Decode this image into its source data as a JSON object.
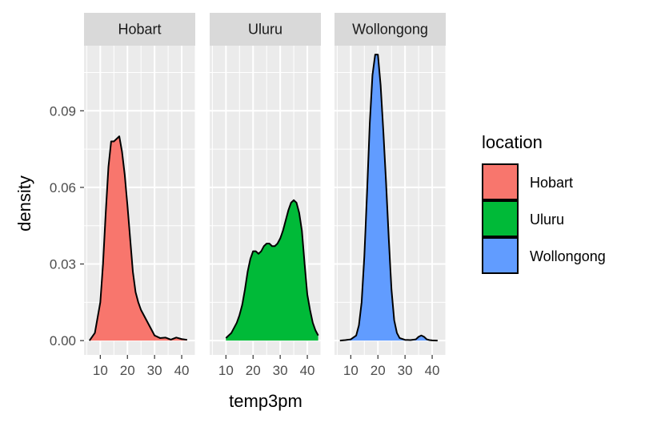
{
  "chart_data": {
    "type": "area",
    "xlabel": "temp3pm",
    "ylabel": "density",
    "xlim": [
      4,
      45
    ],
    "ylim": [
      -0.0056,
      0.1155
    ],
    "x_ticks": [
      10,
      20,
      30,
      40
    ],
    "y_ticks": [
      0.0,
      0.03,
      0.06,
      0.09
    ],
    "y_tick_labels": [
      "0.00",
      "0.03",
      "0.06",
      "0.09"
    ],
    "grid": true,
    "legend": {
      "title": "location",
      "position": "right"
    },
    "panels": [
      {
        "name": "Hobart",
        "color": "#F8766D",
        "x": [
          6,
          8,
          10,
          11,
          12,
          13,
          14,
          15,
          16,
          17,
          18,
          19,
          20,
          21,
          22,
          23,
          24,
          25,
          26,
          27,
          28,
          29,
          30,
          32,
          34,
          36,
          38,
          40,
          42
        ],
        "y": [
          0,
          0.003,
          0.015,
          0.03,
          0.05,
          0.068,
          0.078,
          0.078,
          0.079,
          0.08,
          0.074,
          0.065,
          0.053,
          0.04,
          0.027,
          0.019,
          0.015,
          0.012,
          0.01,
          0.008,
          0.006,
          0.004,
          0.002,
          0.001,
          0.0012,
          0.0004,
          0.0012,
          0.0006,
          0.0003
        ]
      },
      {
        "name": "Uluru",
        "color": "#00BA38",
        "x": [
          10,
          11,
          12,
          13,
          14,
          15,
          16,
          17,
          18,
          19,
          20,
          21,
          22,
          23,
          24,
          25,
          26,
          27,
          28,
          29,
          30,
          31,
          32,
          33,
          34,
          35,
          36,
          37,
          38,
          39,
          40,
          41,
          42,
          43,
          44
        ],
        "y": [
          0.001,
          0.002,
          0.003,
          0.005,
          0.007,
          0.01,
          0.014,
          0.02,
          0.027,
          0.032,
          0.035,
          0.035,
          0.034,
          0.035,
          0.037,
          0.038,
          0.038,
          0.037,
          0.037,
          0.038,
          0.04,
          0.043,
          0.047,
          0.051,
          0.054,
          0.055,
          0.054,
          0.05,
          0.043,
          0.03,
          0.018,
          0.012,
          0.007,
          0.004,
          0.002
        ]
      },
      {
        "name": "Wollongong",
        "color": "#619CFF",
        "x": [
          6,
          8,
          10,
          12,
          13,
          14,
          15,
          16,
          17,
          18,
          19,
          20,
          21,
          22,
          23,
          24,
          25,
          26,
          27,
          28,
          30,
          32,
          34,
          35,
          36,
          37,
          38,
          39,
          40,
          42
        ],
        "y": [
          0,
          0.0002,
          0.0005,
          0.002,
          0.006,
          0.015,
          0.033,
          0.058,
          0.085,
          0.104,
          0.112,
          0.112,
          0.1,
          0.082,
          0.062,
          0.04,
          0.02,
          0.008,
          0.003,
          0.001,
          0.0003,
          0.0002,
          0.0005,
          0.0015,
          0.002,
          0.0015,
          0.0005,
          0.0002,
          0.0001,
          0
        ]
      }
    ]
  }
}
